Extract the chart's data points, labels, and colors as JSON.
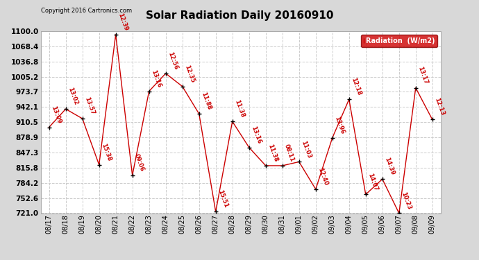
{
  "title": "Solar Radiation Daily 20160910",
  "copyright": "Copyright 2016 Cartronics.com",
  "legend_label": "Radiation  (W/m2)",
  "background_color": "#d8d8d8",
  "plot_bg_color": "#ffffff",
  "dates": [
    "08/17",
    "08/18",
    "08/19",
    "08/20",
    "08/21",
    "08/22",
    "08/23",
    "08/24",
    "08/25",
    "08/26",
    "08/27",
    "08/28",
    "08/29",
    "08/30",
    "08/31",
    "09/01",
    "09/02",
    "09/03",
    "09/04",
    "09/05",
    "09/06",
    "09/07",
    "09/08",
    "09/09"
  ],
  "values": [
    900,
    938,
    918,
    822,
    1093,
    800,
    975,
    1012,
    985,
    928,
    724,
    912,
    858,
    820,
    820,
    828,
    771,
    878,
    958,
    760,
    792,
    721,
    982,
    916
  ],
  "labels": [
    "13:09",
    "13:02",
    "13:57",
    "15:38",
    "12:39",
    "09:06",
    "13:16",
    "12:56",
    "12:35",
    "11:88",
    "15:51",
    "11:38",
    "13:16",
    "11:38",
    "08:11",
    "11:03",
    "12:40",
    "13:96",
    "12:18",
    "14:07",
    "14:39",
    "10:23",
    "13:17",
    "12:13"
  ],
  "ylim_min": 721.0,
  "ylim_max": 1100.0,
  "yticks": [
    721.0,
    752.6,
    784.2,
    815.8,
    847.3,
    878.9,
    910.5,
    942.1,
    973.7,
    1005.2,
    1036.8,
    1068.4,
    1100.0
  ],
  "line_color": "#cc0000",
  "legend_bg": "#cc0000",
  "legend_text_color": "#ffffff",
  "grid_color": "#cccccc"
}
